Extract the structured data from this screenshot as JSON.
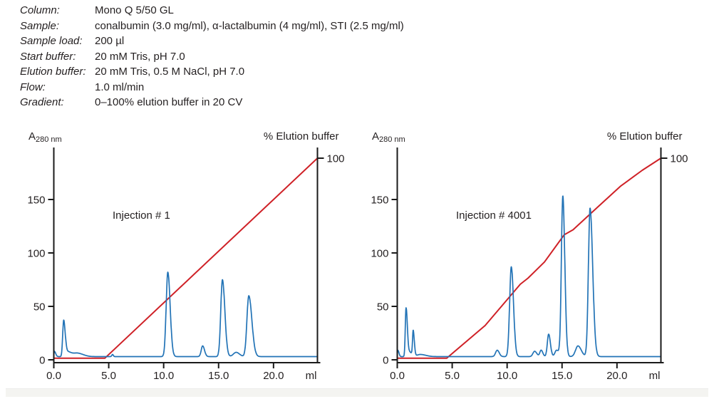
{
  "conditions": {
    "rows": [
      {
        "label": "Column:",
        "value": "Mono Q 5/50 GL"
      },
      {
        "label": "Sample:",
        "value": "conalbumin (3.0 mg/ml), α-lactalbumin (4 mg/ml), STI (2.5 mg/ml)"
      },
      {
        "label": "Sample load:",
        "value": "200 µl"
      },
      {
        "label": "Start buffer:",
        "value": "20 mM Tris, pH 7.0"
      },
      {
        "label": "Elution buffer:",
        "value": "20 mM Tris, 0.5 M NaCl, pH 7.0"
      },
      {
        "label": "Flow:",
        "value": "1.0 ml/min"
      },
      {
        "label": "Gradient:",
        "value": "0–100% elution buffer in 20 CV"
      }
    ]
  },
  "colors": {
    "trace_blue": "#2273b6",
    "gradient_red": "#cf2127",
    "axis_black": "#1a1a1a",
    "text": "#231f20",
    "footer_strip": "#f4f4f1"
  },
  "chart_data": [
    {
      "type": "line",
      "annotation": "Injection # 1",
      "y_axis_label": {
        "main": "A",
        "sub": "280 nm"
      },
      "right_axis_label": "% Elution buffer",
      "x_unit": "ml",
      "xlim": [
        0,
        24
      ],
      "ylim": [
        0,
        198
      ],
      "right_ylim": [
        0,
        105
      ],
      "x_ticks": [
        {
          "v": 0,
          "label": "0.0"
        },
        {
          "v": 5,
          "label": "5.0"
        },
        {
          "v": 10,
          "label": "10.0"
        },
        {
          "v": 15,
          "label": "15.0"
        },
        {
          "v": 20,
          "label": "20.0"
        }
      ],
      "y_ticks": [
        {
          "v": 0,
          "label": "0"
        },
        {
          "v": 50,
          "label": "50"
        },
        {
          "v": 100,
          "label": "100"
        },
        {
          "v": 150,
          "label": "150"
        }
      ],
      "right_tick": {
        "v": 100,
        "label": "100"
      },
      "series": {
        "absorbance": {
          "name": "A280 absorbance trace",
          "color_key": "trace_blue",
          "baseline": 3,
          "peaks_ml_h_sigL_sigR": [
            [
              0.05,
              5,
              0.03,
              0.12
            ],
            [
              0.9,
              34,
              0.09,
              0.13
            ],
            [
              1.15,
              5,
              0.1,
              0.45
            ],
            [
              2.2,
              3,
              0.35,
              0.5
            ],
            [
              5.35,
              2,
              0.07,
              0.07
            ],
            [
              10.38,
              79,
              0.15,
              0.21
            ],
            [
              13.55,
              10,
              0.13,
              0.17
            ],
            [
              15.35,
              72,
              0.15,
              0.22
            ],
            [
              16.6,
              4,
              0.25,
              0.3
            ],
            [
              17.75,
              57,
              0.17,
              0.28
            ]
          ]
        },
        "gradient": {
          "name": "% elution buffer",
          "color_key": "gradient_red",
          "points_ml_pct": [
            [
              0,
              0.8
            ],
            [
              4.65,
              0.8
            ],
            [
              24,
              100
            ]
          ]
        }
      }
    },
    {
      "type": "line",
      "annotation": "Injection # 4001",
      "y_axis_label": {
        "main": "A",
        "sub": "280 nm"
      },
      "right_axis_label": "% Elution buffer",
      "x_unit": "ml",
      "xlim": [
        0,
        24
      ],
      "ylim": [
        0,
        198
      ],
      "right_ylim": [
        0,
        105
      ],
      "x_ticks": [
        {
          "v": 0,
          "label": "0.0"
        },
        {
          "v": 5,
          "label": "5.0"
        },
        {
          "v": 10,
          "label": "10.0"
        },
        {
          "v": 15,
          "label": "15.0"
        },
        {
          "v": 20,
          "label": "20.0"
        }
      ],
      "y_ticks": [
        {
          "v": 0,
          "label": "0"
        },
        {
          "v": 50,
          "label": "50"
        },
        {
          "v": 100,
          "label": "100"
        },
        {
          "v": 150,
          "label": "150"
        }
      ],
      "right_tick": {
        "v": 100,
        "label": "100"
      },
      "series": {
        "absorbance": {
          "name": "A280 absorbance trace",
          "color_key": "trace_blue",
          "baseline": 3,
          "peaks_ml_h_sigL_sigR": [
            [
              0.05,
              6,
              0.03,
              0.1
            ],
            [
              0.8,
              45,
              0.07,
              0.11
            ],
            [
              1.0,
              5,
              0.1,
              0.3
            ],
            [
              1.45,
              23,
              0.06,
              0.1
            ],
            [
              2.1,
              2,
              0.3,
              0.5
            ],
            [
              9.1,
              6,
              0.15,
              0.18
            ],
            [
              10.38,
              84,
              0.15,
              0.2
            ],
            [
              12.5,
              5,
              0.15,
              0.2
            ],
            [
              13.1,
              6,
              0.12,
              0.15
            ],
            [
              13.78,
              21,
              0.12,
              0.16
            ],
            [
              14.5,
              6,
              0.15,
              0.25
            ],
            [
              15.07,
              150,
              0.13,
              0.18
            ],
            [
              16.45,
              10,
              0.22,
              0.3
            ],
            [
              17.55,
              139,
              0.15,
              0.24
            ]
          ]
        },
        "gradient": {
          "name": "% elution buffer",
          "color_key": "gradient_red",
          "points_ml_pct": [
            [
              0,
              0.8
            ],
            [
              4.5,
              0.8
            ],
            [
              8.0,
              17
            ],
            [
              11.2,
              37.5
            ],
            [
              11.9,
              40.5
            ],
            [
              13.4,
              48.5
            ],
            [
              15.2,
              62
            ],
            [
              16.0,
              64.5
            ],
            [
              18.3,
              76
            ],
            [
              20.3,
              86
            ],
            [
              22.3,
              94
            ],
            [
              24,
              100
            ]
          ]
        }
      }
    }
  ]
}
